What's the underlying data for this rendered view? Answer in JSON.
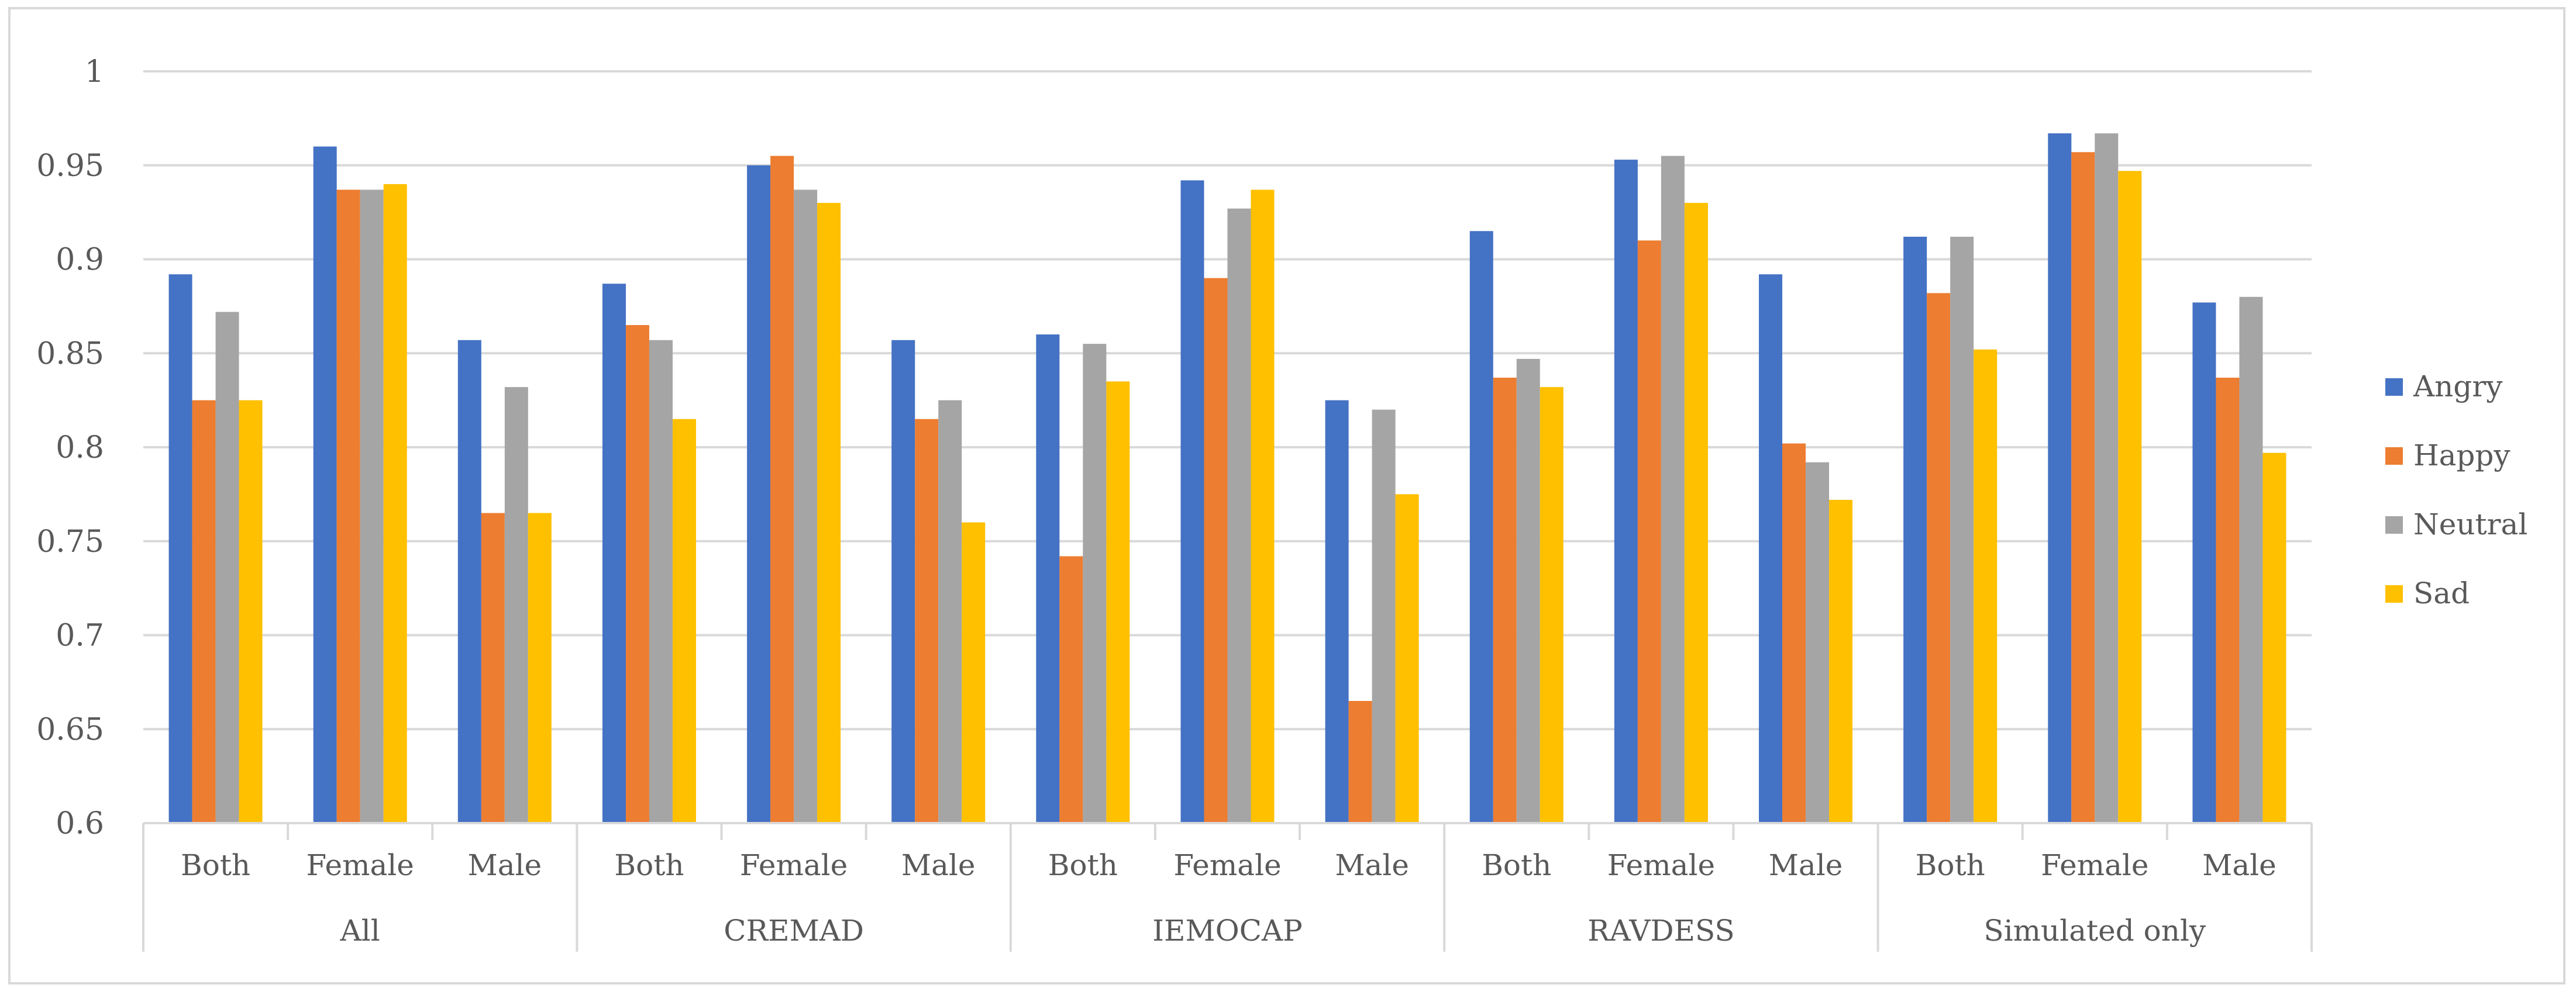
{
  "chart_data": {
    "type": "bar",
    "title": "",
    "xlabel": "",
    "ylabel": "",
    "ylim": [
      0.6,
      1
    ],
    "ytick_step": 0.05,
    "yticks": [
      "0.6",
      "0.65",
      "0.7",
      "0.75",
      "0.8",
      "0.85",
      "0.9",
      "0.95",
      "1"
    ],
    "grid": true,
    "legend_position": "right",
    "groups": [
      {
        "name": "All",
        "categories": [
          "Both",
          "Female",
          "Male"
        ]
      },
      {
        "name": "CREMAD",
        "categories": [
          "Both",
          "Female",
          "Male"
        ]
      },
      {
        "name": "IEMOCAP",
        "categories": [
          "Both",
          "Female",
          "Male"
        ]
      },
      {
        "name": "RAVDESS",
        "categories": [
          "Both",
          "Female",
          "Male"
        ]
      },
      {
        "name": "Simulated only",
        "categories": [
          "Both",
          "Female",
          "Male"
        ]
      }
    ],
    "series": [
      {
        "name": "Angry",
        "color": "#4472C4",
        "values": [
          0.892,
          0.96,
          0.857,
          0.887,
          0.95,
          0.857,
          0.86,
          0.942,
          0.825,
          0.915,
          0.953,
          0.892,
          0.912,
          0.967,
          0.877
        ]
      },
      {
        "name": "Happy",
        "color": "#ED7D31",
        "values": [
          0.825,
          0.937,
          0.765,
          0.865,
          0.955,
          0.815,
          0.742,
          0.89,
          0.665,
          0.837,
          0.91,
          0.802,
          0.882,
          0.957,
          0.837
        ]
      },
      {
        "name": "Neutral",
        "color": "#A5A5A5",
        "values": [
          0.872,
          0.937,
          0.832,
          0.857,
          0.937,
          0.825,
          0.855,
          0.927,
          0.82,
          0.847,
          0.955,
          0.792,
          0.912,
          0.967,
          0.88
        ]
      },
      {
        "name": "Sad",
        "color": "#FFC000",
        "values": [
          0.825,
          0.94,
          0.765,
          0.815,
          0.93,
          0.76,
          0.835,
          0.937,
          0.775,
          0.832,
          0.93,
          0.772,
          0.852,
          0.947,
          0.797
        ]
      }
    ]
  }
}
